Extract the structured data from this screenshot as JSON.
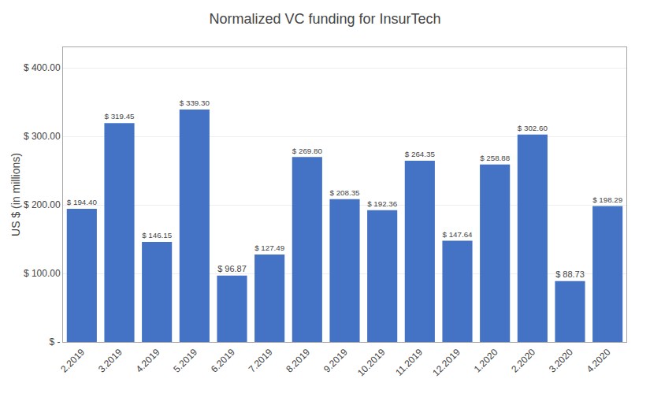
{
  "chart_data": {
    "type": "bar",
    "title": "Normalized VC funding for InsurTech",
    "categories": [
      "2.2019",
      "3.2019",
      "4.2019",
      "5.2019",
      "6.2019",
      "7.2019",
      "8.2019",
      "9.2019",
      "10.2019",
      "11.2019",
      "12.2019",
      "1.2020",
      "2.2020",
      "3.2020",
      "4.2020"
    ],
    "values": [
      194.4,
      319.45,
      146.15,
      339.3,
      96.87,
      127.49,
      269.8,
      208.35,
      192.36,
      264.35,
      147.64,
      258.88,
      302.6,
      88.73,
      198.29
    ],
    "value_labels": [
      "$ 194.40",
      "$ 319.45",
      "$ 146.15",
      "$ 339.30",
      "$ 96.87",
      "$ 127.49",
      "$ 269.80",
      "$ 208.35",
      "$ 192.36",
      "$ 264.35",
      "$ 147.64",
      "$ 258.88",
      "$ 302.60",
      "$ 88.73",
      "$ 198.29"
    ],
    "data_labels": true,
    "color": "#4472C4",
    "ylabel": "US $ (in millions)",
    "ylim": [
      0,
      430
    ],
    "yticks": [
      {
        "value": 0,
        "label": "$ -"
      },
      {
        "value": 100,
        "label": "$ 100.00"
      },
      {
        "value": 200,
        "label": "$ 200.00"
      },
      {
        "value": 300,
        "label": "$ 300.00"
      },
      {
        "value": 400,
        "label": "$ 400.00"
      }
    ],
    "grid": true
  }
}
